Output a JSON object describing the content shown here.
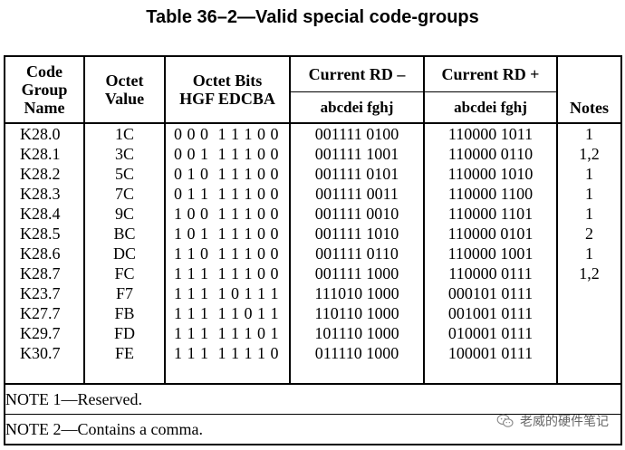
{
  "title": "Table 36–2—Valid special code-groups",
  "headers": {
    "code_group_name": [
      "Code",
      "Group",
      "Name"
    ],
    "octet_value": [
      "Octet",
      "Value"
    ],
    "octet_bits": [
      "Octet Bits",
      "HGF EDCBA"
    ],
    "current_rd_minus": "Current RD –",
    "current_rd_plus": "Current RD +",
    "sub_minus": "abcdei fghj",
    "sub_plus": "abcdei fghj",
    "notes": "Notes"
  },
  "rows": [
    {
      "name": "K28.0",
      "value": "1C",
      "bits": "0 0 0  1 1 1 0 0",
      "rd_minus": "001111 0100",
      "rd_plus": "110000 1011",
      "notes": "1"
    },
    {
      "name": "K28.1",
      "value": "3C",
      "bits": "0 0 1  1 1 1 0 0",
      "rd_minus": "001111 1001",
      "rd_plus": "110000 0110",
      "notes": "1,2"
    },
    {
      "name": "K28.2",
      "value": "5C",
      "bits": "0 1 0  1 1 1 0 0",
      "rd_minus": "001111 0101",
      "rd_plus": "110000 1010",
      "notes": "1"
    },
    {
      "name": "K28.3",
      "value": "7C",
      "bits": "0 1 1  1 1 1 0 0",
      "rd_minus": "001111 0011",
      "rd_plus": "110000 1100",
      "notes": "1"
    },
    {
      "name": "K28.4",
      "value": "9C",
      "bits": "1 0 0  1 1 1 0 0",
      "rd_minus": "001111 0010",
      "rd_plus": "110000 1101",
      "notes": "1"
    },
    {
      "name": "K28.5",
      "value": "BC",
      "bits": "1 0 1  1 1 1 0 0",
      "rd_minus": "001111 1010",
      "rd_plus": "110000 0101",
      "notes": "2"
    },
    {
      "name": "K28.6",
      "value": "DC",
      "bits": "1 1 0  1 1 1 0 0",
      "rd_minus": "001111 0110",
      "rd_plus": "110000 1001",
      "notes": "1"
    },
    {
      "name": "K28.7",
      "value": "FC",
      "bits": "1 1 1  1 1 1 0 0",
      "rd_minus": "001111 1000",
      "rd_plus": "110000 0111",
      "notes": "1,2"
    },
    {
      "name": "K23.7",
      "value": "F7",
      "bits": "1 1 1  1 0 1 1 1",
      "rd_minus": "111010 1000",
      "rd_plus": "000101 0111",
      "notes": ""
    },
    {
      "name": "K27.7",
      "value": "FB",
      "bits": "1 1 1  1 1 0 1 1",
      "rd_minus": "110110 1000",
      "rd_plus": "001001 0111",
      "notes": ""
    },
    {
      "name": "K29.7",
      "value": "FD",
      "bits": "1 1 1  1 1 1 0 1",
      "rd_minus": "101110 1000",
      "rd_plus": "010001 0111",
      "notes": ""
    },
    {
      "name": "K30.7",
      "value": "FE",
      "bits": "1 1 1  1 1 1 1 0",
      "rd_minus": "011110 1000",
      "rd_plus": "100001 0111",
      "notes": ""
    }
  ],
  "notes_text": {
    "note1": "NOTE 1—Reserved.",
    "note2": "NOTE 2—Contains a comma."
  },
  "watermark": {
    "icon": "wechat-icon",
    "text": "老威的硬件笔记"
  }
}
